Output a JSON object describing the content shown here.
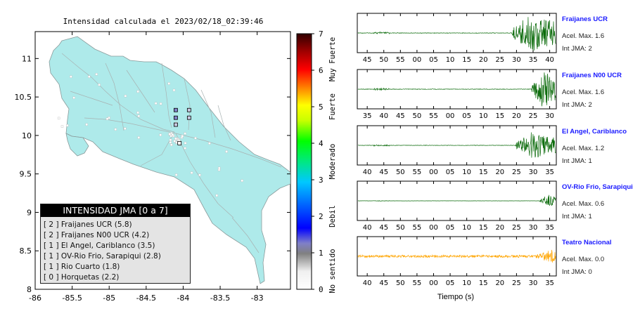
{
  "chart_data": [
    {
      "type": "map",
      "title": "Intensidad calculada el 2023/02/18_02:39:46",
      "xlim": [
        -86,
        -82.55
      ],
      "ylim": [
        8,
        11.35
      ],
      "x_ticks": [
        "-86",
        "-85.5",
        "-85",
        "-84.5",
        "-84",
        "-83.5",
        "-83"
      ],
      "y_ticks": [
        "8",
        "8.5",
        "9",
        "9.5",
        "10",
        "10.5",
        "11"
      ],
      "stations": [
        {
          "lon": -84.1,
          "lat": 10.33,
          "jma": 2
        },
        {
          "lon": -84.1,
          "lat": 10.23,
          "jma": 2
        },
        {
          "lon": -84.1,
          "lat": 10.14,
          "jma": 1
        },
        {
          "lon": -83.92,
          "lat": 10.33,
          "jma": 1
        },
        {
          "lon": -83.92,
          "lat": 10.23,
          "jma": 1
        },
        {
          "lon": -84.05,
          "lat": 9.9,
          "jma": 0
        }
      ],
      "legend": {
        "title": "INTENSIDAD JMA [0 a 7]",
        "entries": [
          "[ 2 ]  Fraijanes UCR (5.8)",
          "[ 2 ]  Fraijanes N00 UCR (4.2)",
          "[ 1 ]  El Angel, Cariblanco (3.5)",
          "[ 1 ]  OV-Rio Frio, Sarapiqui (2.8)",
          "[ 1 ]  Rio Cuarto (1.8)",
          "[ 0 ]  Horquetas (2.2)"
        ]
      }
    },
    {
      "type": "colorbar",
      "range": [
        0,
        7
      ],
      "ticks": [
        "0",
        "1",
        "2",
        "3",
        "4",
        "5",
        "6",
        "7"
      ],
      "labels": [
        "No sentido",
        "Debil",
        "Moderado",
        "Fuerte",
        "Muy Fuerte"
      ],
      "colors": [
        "#ffffff",
        "#808080",
        "#0000ff",
        "#00c8ff",
        "#00ff00",
        "#ffff00",
        "#ff8000",
        "#ff0000",
        "#300000"
      ]
    },
    {
      "type": "line",
      "xlabel": "Tiempo (s)",
      "traces": [
        {
          "station": "Fraijanes UCR",
          "acc_label": "Acel. Max. 1.6",
          "int_label": "Int JMA: 2",
          "color": "#0b6b0b",
          "amplitude": 1.6,
          "ticks": [
            "45",
            "50",
            "55",
            "00",
            "05",
            "10",
            "15",
            "20",
            "25",
            "30",
            "35",
            "40"
          ],
          "tick_first": 45,
          "tick_end": 40
        },
        {
          "station": "Fraijanes N00 UCR",
          "acc_label": "Acel. Max. 1.6",
          "int_label": "Int JMA: 2",
          "color": "#0b6b0b",
          "amplitude": 1.6,
          "ticks": [
            "35",
            "40",
            "45",
            "50",
            "55",
            "00",
            "05",
            "10",
            "15",
            "20",
            "25",
            "30"
          ],
          "tick_first": 35,
          "tick_end": 30
        },
        {
          "station": "El Angel, Cariblanco",
          "acc_label": "Acel. Max. 1.2",
          "int_label": "Int JMA: 1",
          "color": "#0b6b0b",
          "amplitude": 1.2,
          "ticks": [
            "40",
            "45",
            "50",
            "55",
            "00",
            "05",
            "10",
            "15",
            "20",
            "25",
            "30",
            "35"
          ],
          "tick_first": 40,
          "tick_end": 35
        },
        {
          "station": "OV-Rio Frio, Sarapiqui",
          "acc_label": "Acel. Max. 0.6",
          "int_label": "Int JMA: 1",
          "color": "#0b6b0b",
          "amplitude": 0.6,
          "ticks": [
            "40",
            "45",
            "50",
            "55",
            "00",
            "05",
            "10",
            "15",
            "20",
            "25",
            "30",
            "35"
          ],
          "tick_first": 40,
          "tick_end": 35
        },
        {
          "station": "Teatro Nacional",
          "acc_label": "Acel. Max. 0.0",
          "int_label": "Int JMA: 0",
          "color": "#ffa500",
          "amplitude": 0.0,
          "ticks": [
            "40",
            "45",
            "50",
            "55",
            "00",
            "05",
            "10",
            "15",
            "20",
            "25",
            "30",
            "35"
          ],
          "tick_first": 40,
          "tick_end": 35
        }
      ]
    }
  ]
}
